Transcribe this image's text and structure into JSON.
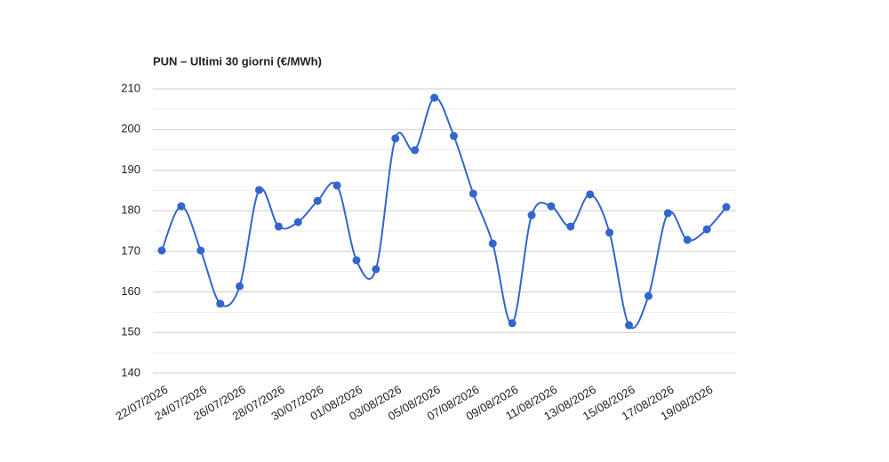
{
  "chart_data": {
    "type": "line",
    "title": "PUN – Ultimi 30 giorni (€/MWh)",
    "categories": [
      "22/07/2026",
      null,
      "24/07/2026",
      null,
      "26/07/2026",
      null,
      "28/07/2026",
      null,
      "30/07/2026",
      null,
      "01/08/2026",
      null,
      "03/08/2026",
      null,
      "05/08/2026",
      null,
      "07/08/2026",
      null,
      "09/08/2026",
      null,
      "11/08/2026",
      null,
      "13/08/2026",
      null,
      "15/08/2026",
      null,
      "17/08/2026",
      null,
      "19/08/2026",
      null
    ],
    "values": [
      170.2,
      181.1,
      170.2,
      157.1,
      161.4,
      185.1,
      176.1,
      177.2,
      182.4,
      186.2,
      167.8,
      165.6,
      197.8,
      194.9,
      207.8,
      198.4,
      184.2,
      171.9,
      152.3,
      178.9,
      181.1,
      176.1,
      184.0,
      174.6,
      151.8,
      159.0,
      179.4,
      172.8,
      175.4,
      180.9
    ],
    "color": "#3366cc",
    "smooth": true,
    "grid": true,
    "minor_grid": true,
    "ylim": [
      140,
      210
    ],
    "yticks": [
      140,
      150,
      160,
      170,
      180,
      190,
      200,
      210
    ]
  }
}
